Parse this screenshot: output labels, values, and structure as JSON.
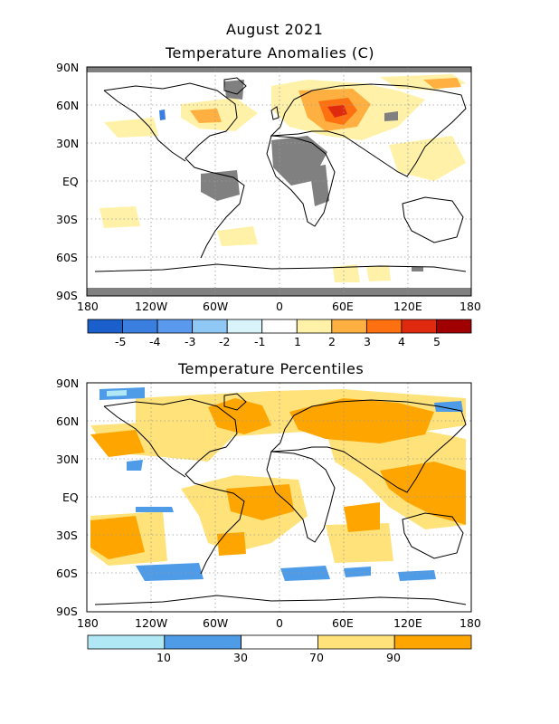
{
  "figure": {
    "title_line1": "August 2021",
    "title_line2": "Temperature Anomalies (C)",
    "panel2_title": "Temperature Percentiles"
  },
  "axes": {
    "lat_labels": [
      "90N",
      "60N",
      "30N",
      "EQ",
      "30S",
      "60S",
      "90S"
    ],
    "lon_labels": [
      "180",
      "120W",
      "60W",
      "0",
      "60E",
      "120E",
      "180"
    ]
  },
  "anomaly_legend": {
    "labels": [
      "-5",
      "-4",
      "-3",
      "-2",
      "-1",
      "1",
      "2",
      "3",
      "4",
      "5"
    ],
    "colors": [
      "#1a5fcc",
      "#3a7fe0",
      "#5a9aee",
      "#90c8f5",
      "#d8f4fa",
      "#ffffff",
      "#fff2a8",
      "#ffb040",
      "#ff7010",
      "#e02a10",
      "#a00000"
    ]
  },
  "percentile_legend": {
    "labels": [
      "10",
      "30",
      "70",
      "90"
    ],
    "colors": [
      "#b0e8f6",
      "#4e9be8",
      "#ffffff",
      "#ffe27a",
      "#ffa500"
    ]
  },
  "colors": {
    "missing_data": "#808080",
    "coastline": "#000000",
    "grid": "#9a9a9a"
  }
}
